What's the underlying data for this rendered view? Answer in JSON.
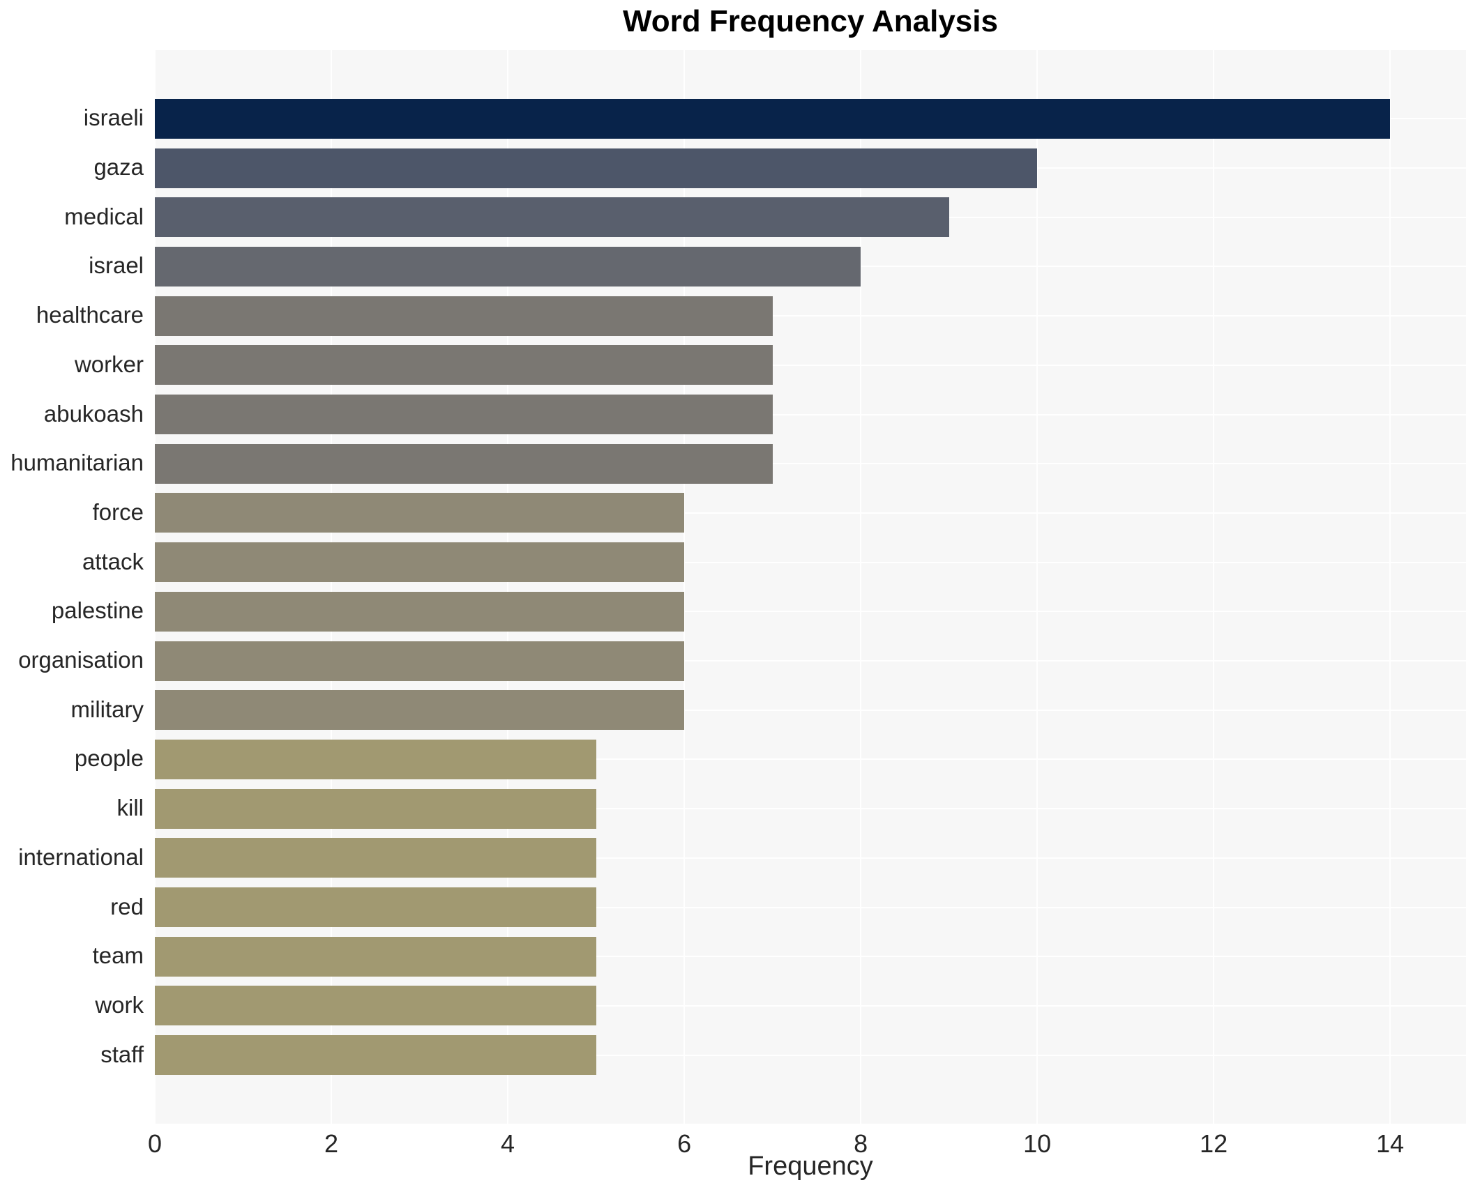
{
  "title": "Word Frequency Analysis",
  "chart_data": {
    "type": "bar",
    "orientation": "horizontal",
    "title": "Word Frequency Analysis",
    "xlabel": "Frequency",
    "ylabel": "",
    "xlim": [
      0,
      14.86
    ],
    "xticks": [
      0,
      2,
      4,
      6,
      8,
      10,
      12,
      14
    ],
    "grid": true,
    "legend": false,
    "plot_background": "#f7f7f7",
    "grid_color": "#ffffff",
    "text_color": "#262626",
    "categories": [
      "israeli",
      "gaza",
      "medical",
      "israel",
      "healthcare",
      "worker",
      "abukoash",
      "humanitarian",
      "force",
      "attack",
      "palestine",
      "organisation",
      "military",
      "people",
      "kill",
      "international",
      "red",
      "team",
      "work",
      "staff"
    ],
    "values": [
      14,
      10,
      9,
      8,
      7,
      7,
      7,
      7,
      6,
      6,
      6,
      6,
      6,
      5,
      5,
      5,
      5,
      5,
      5,
      5
    ],
    "bar_colors": [
      "#08234a",
      "#4d5669",
      "#595f6d",
      "#65686f",
      "#7a7772",
      "#7a7772",
      "#7a7772",
      "#7a7772",
      "#8f8976",
      "#8f8976",
      "#8f8976",
      "#8f8976",
      "#8f8976",
      "#a19971",
      "#a19971",
      "#a19971",
      "#a19971",
      "#a19971",
      "#a19971",
      "#a19971"
    ]
  }
}
